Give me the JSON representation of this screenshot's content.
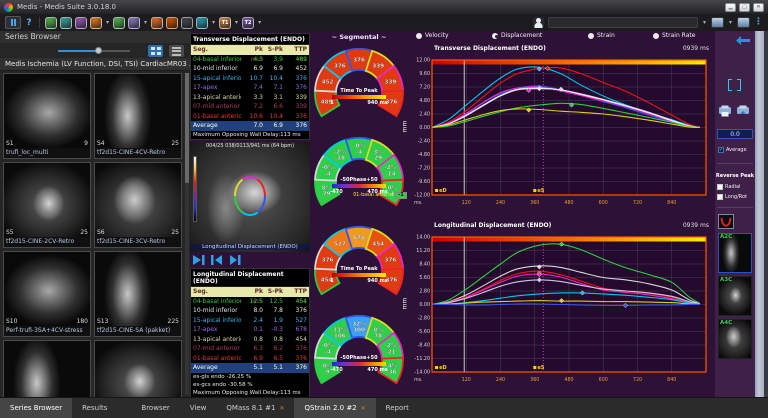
{
  "window": {
    "title": "Medis  -  Medis Suite 3.0.18.0"
  },
  "toolbar": {
    "help_label": "?",
    "apps": [
      {
        "name": "app-icon-green-1",
        "color": "#58b658",
        "dropdown": false,
        "label": ""
      },
      {
        "name": "app-icon-teal-1",
        "color": "#3aa8a0",
        "dropdown": false,
        "label": ""
      },
      {
        "name": "app-icon-purple-1",
        "color": "#9b59b6",
        "dropdown": false,
        "label": ""
      },
      {
        "name": "app-icon-orange-1",
        "color": "#e67e22",
        "dropdown": true,
        "label": ""
      },
      {
        "name": "app-icon-green-2",
        "color": "#58b658",
        "dropdown": false,
        "label": ""
      },
      {
        "name": "app-icon-purple-2",
        "color": "#8e7cc3",
        "dropdown": true,
        "label": ""
      },
      {
        "name": "app-icon-orange-2",
        "color": "#e8702a",
        "dropdown": false,
        "label": ""
      },
      {
        "name": "app-icon-orange-3",
        "color": "#d35400",
        "dropdown": false,
        "label": ""
      },
      {
        "name": "app-icon-user",
        "color": "#444a52",
        "dropdown": false,
        "label": ""
      },
      {
        "name": "app-icon-teal-2",
        "color": "#2aa0b8",
        "dropdown": true,
        "label": ""
      },
      {
        "name": "app-icon-t1",
        "color": "#d4884a",
        "dropdown": true,
        "label": "T1"
      },
      {
        "name": "app-icon-t2",
        "color": "#7a5ab0",
        "dropdown": true,
        "label": "T2"
      }
    ]
  },
  "series_browser": {
    "title": "Series Browser",
    "study": "Medis Ischemia (LV Function, DSI, TSI) CardiacMR03 ...",
    "thumbnails": [
      {
        "id": "S1",
        "frames": "9",
        "label": "trufi_loc_multi"
      },
      {
        "id": "S4",
        "frames": "25",
        "label": "tf2d15-CINE-4CV-Retro"
      },
      {
        "id": "S5",
        "frames": "25",
        "label": "tf2d15-CINE-2CV-Retro"
      },
      {
        "id": "S6",
        "frames": "25",
        "label": "tf2d15-CINE-3CV-Retro"
      },
      {
        "id": "S10",
        "frames": "180",
        "label": "Perf-trufi-3SA+4CV-stress"
      },
      {
        "id": "S13",
        "frames": "225",
        "label": "tf2d15-CINE-SA (pakket)"
      }
    ]
  },
  "tables": {
    "transverse": {
      "title": "Transverse Displacement (ENDO)",
      "headers": [
        "Seg.",
        "Pk mm",
        "S-Pk",
        "TTP ms"
      ],
      "rows": [
        {
          "seg": "04-basal inferior",
          "pk": "4.3",
          "spk": "3.9",
          "ttp": "489",
          "color": "#2ecc40"
        },
        {
          "seg": "10-mid inferior",
          "pk": "6.9",
          "spk": "6.9",
          "ttp": "452",
          "color": "#e8e8e8"
        },
        {
          "seg": "15-apical inferior",
          "pk": "10.7",
          "spk": "10.4",
          "ttp": "376",
          "color": "#35b5f0"
        },
        {
          "seg": "17-apex",
          "pk": "7.4",
          "spk": "7.1",
          "ttp": "376",
          "color": "#9a6ae0"
        },
        {
          "seg": "13-apical anterior",
          "pk": "3.3",
          "spk": "3.1",
          "ttp": "339",
          "color": "#d8d8a8"
        },
        {
          "seg": "07-mid anterior",
          "pk": "7.2",
          "spk": "6.6",
          "ttp": "339",
          "color": "#b03a66"
        },
        {
          "seg": "01-basal anterior",
          "pk": "10.6",
          "spk": "10.4",
          "ttp": "376",
          "color": "#ee3333"
        }
      ],
      "average": {
        "seg": "Average",
        "pk": "7.0",
        "spk": "6.9",
        "ttp": "376"
      },
      "footers": [
        "Maximum Opposing Wall Delay:113 ms"
      ]
    },
    "longitudinal": {
      "title": "Longitudinal Displacement (ENDO)",
      "headers": [
        "Seg.",
        "Pk mm",
        "S-Pk",
        "TTP ms"
      ],
      "rows": [
        {
          "seg": "04-basal inferior",
          "pk": "12.5",
          "spk": "12.5",
          "ttp": "454",
          "color": "#2ecc40"
        },
        {
          "seg": "10-mid inferior",
          "pk": "8.0",
          "spk": "7.8",
          "ttp": "376",
          "color": "#e8e8e8"
        },
        {
          "seg": "15-apical inferior",
          "pk": "2.4",
          "spk": "1.9",
          "ttp": "527",
          "color": "#35b5f0"
        },
        {
          "seg": "17-apex",
          "pk": "0.1",
          "spk": "-0.3",
          "ttp": "678",
          "color": "#9a6ae0"
        },
        {
          "seg": "13-apical anterior",
          "pk": "0.8",
          "spk": "0.8",
          "ttp": "454",
          "color": "#d8d8a8"
        },
        {
          "seg": "07-mid anterior",
          "pk": "6.3",
          "spk": "6.2",
          "ttp": "376",
          "color": "#b03a66"
        },
        {
          "seg": "01-basal anterior",
          "pk": "6.9",
          "spk": "6.5",
          "ttp": "376",
          "color": "#ee3333"
        }
      ],
      "average": {
        "seg": "Average",
        "pk": "5.1",
        "spk": "5.1",
        "ttp": "376"
      },
      "footers": [
        "es-gls endo -26.25 %",
        "es-gcs endo -30.58 %",
        "Maximum Opposing Wall Delay:113 ms"
      ]
    }
  },
  "viewer": {
    "overlay": "004/25  038/0113/941 ms  (64 bpm)",
    "label": "Longitudinal Displacement (ENDO)"
  },
  "segmental": {
    "title": "~ Segmental ~",
    "segment_colors": [
      "#2ecc40",
      "#d8d8d8",
      "#00c8f0",
      "#3355ee",
      "#dddd22",
      "#ee22cc",
      "#ee2222"
    ],
    "maps": [
      {
        "kind": "ttp",
        "legend": {
          "label": "Time To Peak",
          "min": "1",
          "max": "940 ms"
        },
        "fills": [
          "#e03a12",
          "#e03a12",
          "#e03a12",
          "#e03a12",
          "#e03a12",
          "#e03a12",
          "#e03a12"
        ],
        "values": [
          [
            "489"
          ],
          [
            "452"
          ],
          [
            "376"
          ],
          [
            "376"
          ],
          [
            "339"
          ],
          [
            "339"
          ],
          [
            "376"
          ]
        ]
      },
      {
        "kind": "phase",
        "legend": {
          "label": "-50Phase+50",
          "min": "-470",
          "max": "470 ms"
        },
        "fills": [
          "#2ed04a",
          "#2ed04a",
          "#2ed04a",
          "#2ed04a",
          "#2ed04a",
          "#2ed04a",
          "#2ed04a"
        ],
        "values": [
          [
            "8%",
            "79"
          ],
          [
            "-0%",
            "-4"
          ],
          [
            "-2%",
            "-18"
          ],
          [
            "-0%",
            "-4"
          ],
          [
            "3%",
            "29"
          ],
          [
            "-2%",
            "-14"
          ],
          [
            "-0%",
            "-1"
          ]
        ],
        "tooltip": {
          "label": "01-basal anterior",
          "value": "-1"
        }
      },
      {
        "kind": "ttp",
        "legend": {
          "label": "Time To Peak",
          "min": "1",
          "max": "940 ms"
        },
        "fills": [
          "#e03a12",
          "#e03a12",
          "#f07818",
          "#f09a20",
          "#e8500f",
          "#e03a12",
          "#e03a12"
        ],
        "values": [
          [
            "454"
          ],
          [
            "376"
          ],
          [
            "527"
          ],
          [
            "678"
          ],
          [
            "454"
          ],
          [
            "376"
          ],
          [
            "376"
          ]
        ]
      },
      {
        "kind": "phase",
        "legend": {
          "label": "-50Phase+50",
          "min": "-470",
          "max": "470 ms"
        },
        "fills": [
          "#2ed04a",
          "#2ed04a",
          "#2ed04a",
          "#3aa0f0",
          "#2ed04a",
          "#2ed04a",
          "#2ed04a"
        ],
        "values": [
          [
            "-0%",
            "-9"
          ],
          [
            "-0%",
            "-4"
          ],
          [
            "11%",
            "106"
          ],
          [
            "32%",
            "300"
          ],
          [
            "8%",
            "78"
          ],
          [
            "-2%",
            "-21"
          ],
          [
            "-4%",
            "-36"
          ]
        ]
      }
    ]
  },
  "controls": {
    "radios": [
      {
        "label": "Velocity",
        "selected": false,
        "x": 8
      },
      {
        "label": "Displacement",
        "selected": true,
        "x": 84
      },
      {
        "label": "Strain",
        "selected": false,
        "x": 180
      },
      {
        "label": "Strain Rate",
        "selected": false,
        "x": 245
      }
    ]
  },
  "chart_data": [
    {
      "type": "line",
      "title": "Transverse Displacement (ENDO)",
      "time_label": "0939 ms",
      "ylabel": "mm",
      "xlabel": "ms.",
      "ylim": [
        -12,
        12
      ],
      "yticks": [
        12,
        9.6,
        7.2,
        4.8,
        2.4,
        0,
        -2.4,
        -4.8,
        -7.2,
        -9.6,
        -12
      ],
      "xticks": [
        120,
        240,
        360,
        480,
        600,
        720,
        840
      ],
      "xmax": 960,
      "cursor_ms": 113,
      "es_ms": 390,
      "ed_ms": 16,
      "ed_label": "eD",
      "es_label": "eS",
      "x": [
        0,
        60,
        120,
        180,
        240,
        300,
        376,
        450,
        520,
        600,
        680,
        760,
        840,
        900,
        939
      ],
      "series": [
        {
          "name": "15-apical inferior",
          "color": "#00c8f0",
          "marker": [
            376,
            10.4
          ],
          "values": [
            0,
            1.5,
            4.0,
            6.5,
            8.8,
            10.4,
            10.7,
            9.6,
            7.6,
            5.6,
            4.0,
            2.6,
            1.4,
            0.4,
            0
          ]
        },
        {
          "name": "01-basal anterior",
          "color": "#ee1515",
          "marker": [
            405,
            10.5
          ],
          "values": [
            0,
            1.0,
            3.0,
            5.5,
            7.9,
            9.6,
            10.5,
            10.6,
            9.6,
            8.0,
            6.4,
            4.4,
            2.2,
            0.6,
            0
          ]
        },
        {
          "name": "17-apex",
          "color": "#3355ee",
          "marker": [
            376,
            7.1
          ],
          "values": [
            0,
            0.8,
            2.4,
            4.4,
            6.0,
            7.0,
            7.4,
            6.7,
            5.7,
            4.6,
            3.5,
            2.2,
            1.0,
            0.2,
            0
          ]
        },
        {
          "name": "07-mid anterior",
          "color": "#ee22cc",
          "marker": [
            339,
            6.6
          ],
          "values": [
            0,
            0.8,
            2.5,
            4.5,
            6.2,
            7.0,
            7.2,
            6.5,
            5.7,
            4.7,
            3.7,
            2.4,
            1.1,
            0.3,
            0
          ]
        },
        {
          "name": "10-mid inferior",
          "color": "#d8d8d8",
          "marker": [
            452,
            6.8
          ],
          "values": [
            0,
            0.7,
            2.1,
            3.9,
            5.6,
            6.7,
            6.9,
            6.7,
            6.0,
            5.0,
            3.9,
            2.7,
            1.3,
            0.3,
            0
          ]
        },
        {
          "name": "Average",
          "color": "#efe6ff",
          "marker": [
            376,
            6.9
          ],
          "values": [
            0,
            0.7,
            2.2,
            4.0,
            5.7,
            6.8,
            7.0,
            6.7,
            5.9,
            4.9,
            3.8,
            2.6,
            1.2,
            0.3,
            0
          ]
        },
        {
          "name": "04-basal inferior",
          "color": "#2ecc40",
          "marker": [
            489,
            4.0
          ],
          "values": [
            0,
            0.3,
            1.1,
            2.0,
            2.8,
            3.5,
            4.0,
            4.3,
            4.1,
            3.4,
            2.6,
            1.8,
            0.9,
            0.2,
            0
          ]
        },
        {
          "name": "13-apical anterior",
          "color": "#dccc22",
          "marker": [
            339,
            3.1
          ],
          "values": [
            0,
            0.5,
            1.4,
            2.3,
            3.0,
            3.3,
            3.2,
            2.9,
            2.7,
            2.4,
            1.9,
            1.3,
            0.6,
            0.1,
            0
          ]
        }
      ]
    },
    {
      "type": "line",
      "title": "Longitudinal Displacement (ENDO)",
      "time_label": "0939 ms",
      "ylabel": "mm",
      "xlabel": "ms.",
      "ylim": [
        -14,
        14
      ],
      "yticks": [
        14,
        11.2,
        8.4,
        5.6,
        2.8,
        0,
        -2.8,
        -5.6,
        -8.4,
        -11.2,
        -14
      ],
      "xticks": [
        120,
        240,
        360,
        480,
        600,
        720,
        840
      ],
      "xmax": 960,
      "cursor_ms": 113,
      "es_ms": 390,
      "ed_ms": 16,
      "ed_label": "eD",
      "es_label": "eS",
      "x": [
        0,
        60,
        120,
        180,
        240,
        300,
        376,
        450,
        520,
        600,
        680,
        760,
        840,
        900,
        939
      ],
      "series": [
        {
          "name": "04-basal inferior",
          "color": "#2ecc40",
          "marker": [
            454,
            12.5
          ],
          "values": [
            0,
            1.0,
            3.2,
            5.8,
            8.4,
            10.8,
            12.3,
            12.5,
            11.4,
            9.4,
            7.6,
            6.2,
            4.6,
            1.6,
            0.2
          ]
        },
        {
          "name": "10-mid inferior",
          "color": "#d8d8d8",
          "marker": [
            376,
            7.8
          ],
          "values": [
            0,
            0.6,
            2.0,
            3.9,
            5.9,
            7.4,
            8.0,
            7.7,
            6.7,
            5.6,
            5.1,
            4.3,
            3.0,
            1.0,
            0.1
          ]
        },
        {
          "name": "01-basal anterior",
          "color": "#ee1515",
          "marker": [
            376,
            6.5
          ],
          "values": [
            0,
            0.5,
            1.6,
            3.2,
            5.0,
            6.4,
            6.9,
            6.2,
            4.9,
            3.4,
            2.8,
            2.3,
            1.5,
            0.5,
            0
          ]
        },
        {
          "name": "07-mid anterior",
          "color": "#ee22cc",
          "marker": [
            376,
            6.2
          ],
          "values": [
            0,
            0.4,
            1.5,
            3.0,
            4.6,
            5.9,
            6.3,
            5.7,
            4.4,
            3.0,
            2.5,
            2.0,
            1.2,
            0.4,
            0
          ]
        },
        {
          "name": "Average",
          "color": "#cfc3ea",
          "marker": [
            376,
            5.1
          ],
          "values": [
            0,
            0.4,
            1.3,
            2.5,
            3.8,
            4.7,
            5.1,
            4.8,
            4.0,
            3.2,
            2.8,
            2.4,
            1.7,
            0.6,
            0
          ]
        },
        {
          "name": "15-apical inferior",
          "color": "#00c8f0",
          "marker": [
            527,
            2.4
          ],
          "values": [
            0,
            0.1,
            0.4,
            0.8,
            1.3,
            1.8,
            2.2,
            2.4,
            2.4,
            2.2,
            1.9,
            1.5,
            1.0,
            0.3,
            0
          ]
        },
        {
          "name": "13-apical anterior",
          "color": "#dccc22",
          "marker": [
            454,
            0.8
          ],
          "values": [
            0,
            0.1,
            0.3,
            0.5,
            0.6,
            0.7,
            0.8,
            0.7,
            0.7,
            0.6,
            0.6,
            0.5,
            0.4,
            0.1,
            0
          ]
        },
        {
          "name": "17-apex",
          "color": "#3355ee",
          "marker": [
            678,
            -0.2
          ],
          "values": [
            0,
            0,
            -0.1,
            -0.1,
            0,
            0.1,
            0.1,
            0,
            -0.1,
            -0.2,
            -0.2,
            -0.1,
            -0.1,
            0,
            0
          ]
        }
      ]
    }
  ],
  "sidebar": {
    "value": "0.0",
    "average_label": "Average",
    "reverse_peak_label": "Reverse Peak",
    "radial_label": "Radial",
    "longrot_label": "Long/Rot",
    "views": [
      {
        "label": "A2C",
        "active": true
      },
      {
        "label": "A3C",
        "active": false
      },
      {
        "label": "A4C",
        "active": false
      }
    ]
  },
  "bottom_bar": {
    "left_tabs": [
      {
        "label": "Series Browser",
        "active": true
      },
      {
        "label": "Results",
        "active": false
      }
    ],
    "app_tabs": [
      {
        "label": "Browser",
        "closable": false,
        "active": false
      },
      {
        "label": "View",
        "closable": false,
        "active": false
      },
      {
        "label": "QMass 8.1 #1",
        "closable": true,
        "active": false
      },
      {
        "label": "QStrain 2.0 #2",
        "closable": true,
        "active": true
      },
      {
        "label": "Report",
        "closable": false,
        "active": false
      }
    ]
  }
}
